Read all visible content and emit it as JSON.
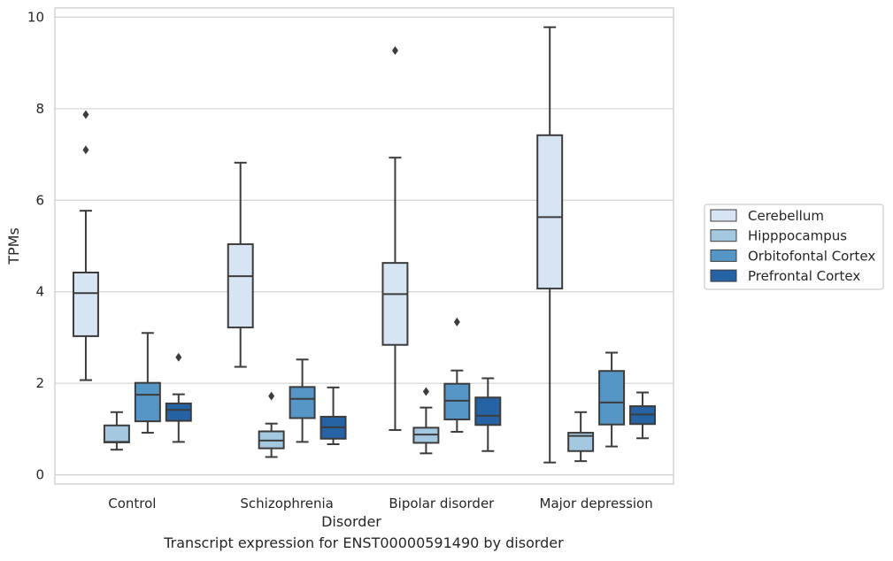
{
  "chart_data": {
    "type": "box",
    "xlabel": "Disorder",
    "ylabel": "TPMs",
    "caption": "Transcript expression for ENST00000591490 by disorder",
    "ylim": [
      -0.2,
      10.2
    ],
    "yticks": [
      "0",
      "2",
      "4",
      "6",
      "8",
      "10"
    ],
    "grid": true,
    "legend_position": "right",
    "categories": [
      "Control",
      "Schizophrenia",
      "Bipolar disorder",
      "Major depression"
    ],
    "series": [
      {
        "name": "Cerebellum",
        "color": "#d6e4f3",
        "boxes": [
          {
            "whislo": 2.07,
            "q1": 3.03,
            "med": 3.97,
            "q3": 4.42,
            "whishi": 5.77,
            "fliers": [
              7.1,
              7.87
            ]
          },
          {
            "whislo": 2.36,
            "q1": 3.22,
            "med": 4.34,
            "q3": 5.04,
            "whishi": 6.82,
            "fliers": []
          },
          {
            "whislo": 0.98,
            "q1": 2.84,
            "med": 3.95,
            "q3": 4.63,
            "whishi": 6.93,
            "fliers": [
              9.27
            ]
          },
          {
            "whislo": 0.27,
            "q1": 4.07,
            "med": 5.63,
            "q3": 7.42,
            "whishi": 9.78,
            "fliers": []
          }
        ]
      },
      {
        "name": "Hipppocampus",
        "color": "#a5c8e1",
        "boxes": [
          {
            "whislo": 0.55,
            "q1": 0.71,
            "med": 0.72,
            "q3": 1.08,
            "whishi": 1.37,
            "fliers": []
          },
          {
            "whislo": 0.39,
            "q1": 0.58,
            "med": 0.75,
            "q3": 0.95,
            "whishi": 1.12,
            "fliers": [
              1.72
            ]
          },
          {
            "whislo": 0.47,
            "q1": 0.7,
            "med": 0.88,
            "q3": 1.03,
            "whishi": 1.47,
            "fliers": [
              1.82
            ]
          },
          {
            "whislo": 0.3,
            "q1": 0.52,
            "med": 0.85,
            "q3": 0.92,
            "whishi": 1.37,
            "fliers": []
          }
        ]
      },
      {
        "name": "Orbitofontal Cortex",
        "color": "#5596c6",
        "boxes": [
          {
            "whislo": 0.92,
            "q1": 1.17,
            "med": 1.75,
            "q3": 2.01,
            "whishi": 3.1,
            "fliers": []
          },
          {
            "whislo": 0.72,
            "q1": 1.24,
            "med": 1.66,
            "q3": 1.92,
            "whishi": 2.52,
            "fliers": []
          },
          {
            "whislo": 0.94,
            "q1": 1.21,
            "med": 1.62,
            "q3": 1.99,
            "whishi": 2.28,
            "fliers": [
              3.34
            ]
          },
          {
            "whislo": 0.62,
            "q1": 1.1,
            "med": 1.58,
            "q3": 2.27,
            "whishi": 2.67,
            "fliers": []
          }
        ]
      },
      {
        "name": "Prefrontal Cortex",
        "color": "#2563a5",
        "boxes": [
          {
            "whislo": 0.72,
            "q1": 1.18,
            "med": 1.42,
            "q3": 1.56,
            "whishi": 1.76,
            "fliers": [
              2.57
            ]
          },
          {
            "whislo": 0.67,
            "q1": 0.79,
            "med": 1.04,
            "q3": 1.27,
            "whishi": 1.91,
            "fliers": []
          },
          {
            "whislo": 0.52,
            "q1": 1.09,
            "med": 1.29,
            "q3": 1.69,
            "whishi": 2.11,
            "fliers": []
          },
          {
            "whislo": 0.8,
            "q1": 1.11,
            "med": 1.32,
            "q3": 1.5,
            "whishi": 1.8,
            "fliers": []
          }
        ]
      }
    ]
  }
}
